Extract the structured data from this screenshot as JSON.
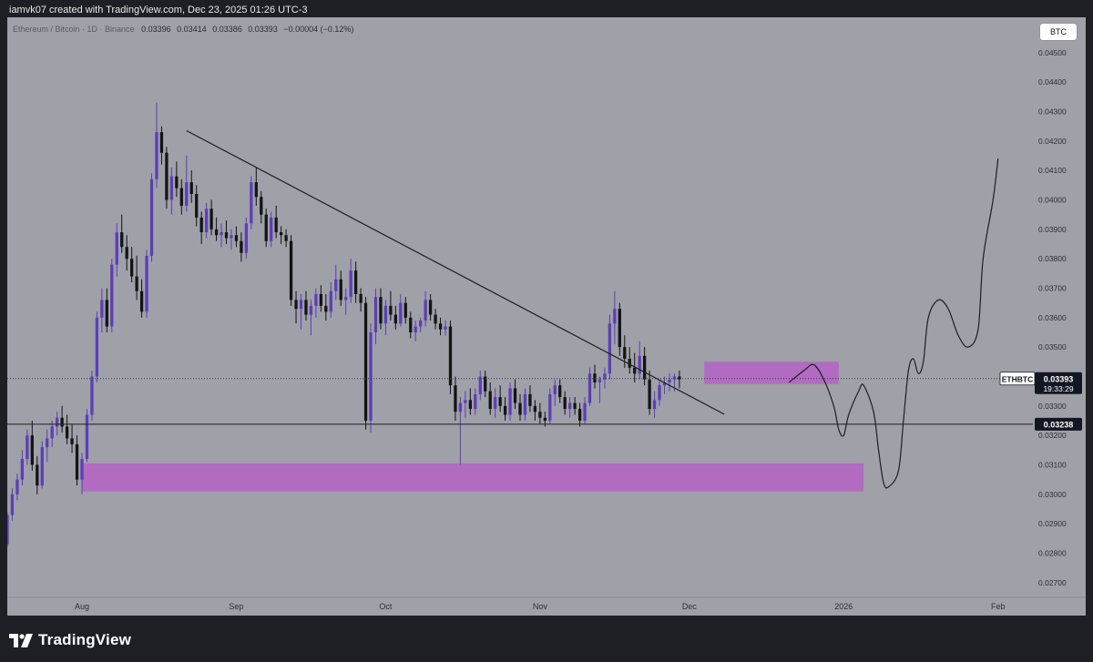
{
  "header": {
    "credit": "iamvk07 created with TradingView.com, Dec 23, 2025 01:26 UTC-3"
  },
  "legend": {
    "symbol": "Ethereum / Bitcoin · 1D · Binance",
    "open": "0.03396",
    "high": "0.03414",
    "low": "0.03386",
    "close": "0.03393",
    "change": "−0.00004 (−0.12%)"
  },
  "currency_button": "BTC",
  "footer": {
    "brand": "TradingView"
  },
  "colors": {
    "background": "#9fa0a8",
    "frame": "#1e1f24",
    "bull": "#5b3fb8",
    "bear": "#141414",
    "zone": "#b65cc8",
    "line": "#1f1f22"
  },
  "chart_data": {
    "type": "candlestick",
    "symbol": "ETHBTC",
    "ylim": [
      0.0265,
      0.0462
    ],
    "y_ticks": [
      "0.02700",
      "0.02800",
      "0.02900",
      "0.03000",
      "0.03100",
      "0.03200",
      "0.03300",
      "0.03400",
      "0.03500",
      "0.03600",
      "0.03700",
      "0.03800",
      "0.03900",
      "0.04000",
      "0.04100",
      "0.04200",
      "0.04300",
      "0.04400",
      "0.04500"
    ],
    "x_ticks": [
      {
        "label": "Aug",
        "date": "2025-08-01"
      },
      {
        "label": "Sep",
        "date": "2025-09-01"
      },
      {
        "label": "Oct",
        "date": "2025-10-01"
      },
      {
        "label": "Nov",
        "date": "2025-11-01"
      },
      {
        "label": "Dec",
        "date": "2025-12-01"
      },
      {
        "label": "2026",
        "date": "2026-01-01"
      },
      {
        "label": "Feb",
        "date": "2026-02-01"
      }
    ],
    "x_range": [
      "2025-07-17",
      "2026-02-08"
    ],
    "candles_start": "2025-07-17",
    "candles": [
      [
        0.0283,
        0.0294,
        0.0282,
        0.0293
      ],
      [
        0.0293,
        0.0302,
        0.0291,
        0.03
      ],
      [
        0.03,
        0.0307,
        0.0298,
        0.0305
      ],
      [
        0.0305,
        0.0315,
        0.0303,
        0.0312
      ],
      [
        0.0312,
        0.0322,
        0.031,
        0.032
      ],
      [
        0.032,
        0.0325,
        0.0308,
        0.031
      ],
      [
        0.031,
        0.0313,
        0.03,
        0.0303
      ],
      [
        0.0303,
        0.0318,
        0.0302,
        0.0316
      ],
      [
        0.0316,
        0.0322,
        0.0311,
        0.0319
      ],
      [
        0.0319,
        0.0325,
        0.0316,
        0.0323
      ],
      [
        0.0323,
        0.0328,
        0.032,
        0.0326
      ],
      [
        0.0326,
        0.033,
        0.0321,
        0.0323
      ],
      [
        0.0323,
        0.0327,
        0.0317,
        0.0319
      ],
      [
        0.0319,
        0.0324,
        0.0314,
        0.0317
      ],
      [
        0.0317,
        0.032,
        0.0303,
        0.0305
      ],
      [
        0.0305,
        0.0314,
        0.03,
        0.0312
      ],
      [
        0.0312,
        0.0329,
        0.0311,
        0.0327
      ],
      [
        0.0327,
        0.0342,
        0.0325,
        0.034
      ],
      [
        0.034,
        0.0362,
        0.0338,
        0.036
      ],
      [
        0.036,
        0.037,
        0.0355,
        0.0366
      ],
      [
        0.0366,
        0.037,
        0.0355,
        0.0357
      ],
      [
        0.0357,
        0.038,
        0.0355,
        0.0378
      ],
      [
        0.0378,
        0.0392,
        0.0374,
        0.0389
      ],
      [
        0.0389,
        0.0395,
        0.0382,
        0.0384
      ],
      [
        0.0384,
        0.0388,
        0.0376,
        0.038
      ],
      [
        0.038,
        0.0384,
        0.0372,
        0.0374
      ],
      [
        0.0374,
        0.0381,
        0.0366,
        0.0369
      ],
      [
        0.0369,
        0.0373,
        0.036,
        0.0362
      ],
      [
        0.0362,
        0.0383,
        0.036,
        0.0381
      ],
      [
        0.0381,
        0.0409,
        0.0379,
        0.0407
      ],
      [
        0.0407,
        0.0433,
        0.0404,
        0.0423
      ],
      [
        0.0423,
        0.0425,
        0.0412,
        0.0416
      ],
      [
        0.0416,
        0.0418,
        0.0397,
        0.04
      ],
      [
        0.04,
        0.0411,
        0.0395,
        0.0408
      ],
      [
        0.0408,
        0.0413,
        0.0401,
        0.0404
      ],
      [
        0.0404,
        0.0407,
        0.0395,
        0.0398
      ],
      [
        0.0398,
        0.0415,
        0.0396,
        0.0406
      ],
      [
        0.0406,
        0.041,
        0.0399,
        0.0402
      ],
      [
        0.0402,
        0.0405,
        0.0391,
        0.0394
      ],
      [
        0.0394,
        0.0396,
        0.0385,
        0.0389
      ],
      [
        0.0389,
        0.0399,
        0.0387,
        0.0397
      ],
      [
        0.0397,
        0.04,
        0.0388,
        0.039
      ],
      [
        0.039,
        0.0394,
        0.0386,
        0.0388
      ],
      [
        0.0388,
        0.0392,
        0.0384,
        0.0389
      ],
      [
        0.0389,
        0.0393,
        0.0385,
        0.0387
      ],
      [
        0.0387,
        0.039,
        0.0383,
        0.0388
      ],
      [
        0.0388,
        0.0391,
        0.0384,
        0.0386
      ],
      [
        0.0386,
        0.0389,
        0.0379,
        0.0382
      ],
      [
        0.0382,
        0.0394,
        0.038,
        0.0392
      ],
      [
        0.0392,
        0.0408,
        0.039,
        0.0406
      ],
      [
        0.0406,
        0.0411,
        0.0398,
        0.0401
      ],
      [
        0.0401,
        0.0403,
        0.0392,
        0.0395
      ],
      [
        0.0395,
        0.0397,
        0.0384,
        0.0386
      ],
      [
        0.0386,
        0.0396,
        0.0384,
        0.0394
      ],
      [
        0.0394,
        0.0398,
        0.0387,
        0.0389
      ],
      [
        0.0389,
        0.0391,
        0.0385,
        0.0388
      ],
      [
        0.0388,
        0.039,
        0.0384,
        0.0386
      ],
      [
        0.0386,
        0.0388,
        0.0364,
        0.0366
      ],
      [
        0.0366,
        0.0369,
        0.0358,
        0.0363
      ],
      [
        0.0363,
        0.0368,
        0.0356,
        0.0366
      ],
      [
        0.0366,
        0.0369,
        0.0359,
        0.0361
      ],
      [
        0.0361,
        0.0366,
        0.0354,
        0.0364
      ],
      [
        0.0364,
        0.037,
        0.036,
        0.0368
      ],
      [
        0.0368,
        0.0371,
        0.0362,
        0.0364
      ],
      [
        0.0364,
        0.0368,
        0.0359,
        0.0362
      ],
      [
        0.0362,
        0.0372,
        0.036,
        0.0369
      ],
      [
        0.0369,
        0.0378,
        0.0366,
        0.0373
      ],
      [
        0.0373,
        0.0376,
        0.0364,
        0.0366
      ],
      [
        0.0366,
        0.037,
        0.0361,
        0.0367
      ],
      [
        0.0367,
        0.038,
        0.0365,
        0.0376
      ],
      [
        0.0376,
        0.0379,
        0.0365,
        0.0368
      ],
      [
        0.0368,
        0.037,
        0.0362,
        0.0365
      ],
      [
        0.0365,
        0.0367,
        0.0322,
        0.0325
      ],
      [
        0.0325,
        0.0358,
        0.0321,
        0.0355
      ],
      [
        0.0355,
        0.037,
        0.0351,
        0.0367
      ],
      [
        0.0367,
        0.037,
        0.0356,
        0.0358
      ],
      [
        0.0358,
        0.0366,
        0.0354,
        0.0364
      ],
      [
        0.0364,
        0.0369,
        0.0359,
        0.0361
      ],
      [
        0.0361,
        0.0364,
        0.0356,
        0.0358
      ],
      [
        0.0358,
        0.0368,
        0.0357,
        0.0365
      ],
      [
        0.0365,
        0.0367,
        0.0358,
        0.036
      ],
      [
        0.036,
        0.0362,
        0.0353,
        0.0355
      ],
      [
        0.0355,
        0.0359,
        0.0352,
        0.0357
      ],
      [
        0.0357,
        0.036,
        0.0355,
        0.0359
      ],
      [
        0.0359,
        0.0369,
        0.0357,
        0.0366
      ],
      [
        0.0366,
        0.0368,
        0.0359,
        0.0361
      ],
      [
        0.0361,
        0.0363,
        0.0356,
        0.0358
      ],
      [
        0.0358,
        0.036,
        0.0354,
        0.0356
      ],
      [
        0.0356,
        0.0359,
        0.0354,
        0.0357
      ],
      [
        0.0357,
        0.0359,
        0.0334,
        0.0337
      ],
      [
        0.0337,
        0.034,
        0.0325,
        0.0328
      ],
      [
        0.0328,
        0.0333,
        0.031,
        0.0331
      ],
      [
        0.0331,
        0.0335,
        0.0326,
        0.0332
      ],
      [
        0.0332,
        0.0336,
        0.0327,
        0.0329
      ],
      [
        0.0329,
        0.0336,
        0.0327,
        0.0334
      ],
      [
        0.0334,
        0.0342,
        0.0332,
        0.034
      ],
      [
        0.034,
        0.0342,
        0.0333,
        0.0335
      ],
      [
        0.0335,
        0.0338,
        0.0327,
        0.0329
      ],
      [
        0.0329,
        0.0336,
        0.0326,
        0.0333
      ],
      [
        0.0333,
        0.0337,
        0.0328,
        0.033
      ],
      [
        0.033,
        0.0333,
        0.0325,
        0.0327
      ],
      [
        0.0327,
        0.0338,
        0.0325,
        0.0336
      ],
      [
        0.0336,
        0.0339,
        0.0329,
        0.0331
      ],
      [
        0.0331,
        0.0334,
        0.0325,
        0.0327
      ],
      [
        0.0327,
        0.0336,
        0.0325,
        0.0334
      ],
      [
        0.0334,
        0.0337,
        0.0328,
        0.033
      ],
      [
        0.033,
        0.0332,
        0.0325,
        0.0328
      ],
      [
        0.0328,
        0.0331,
        0.0324,
        0.0326
      ],
      [
        0.0326,
        0.0328,
        0.0323,
        0.0325
      ],
      [
        0.0325,
        0.0336,
        0.0324,
        0.0334
      ],
      [
        0.0334,
        0.0339,
        0.033,
        0.0337
      ],
      [
        0.0337,
        0.0339,
        0.0331,
        0.0333
      ],
      [
        0.0333,
        0.0335,
        0.0327,
        0.0329
      ],
      [
        0.0329,
        0.0333,
        0.0326,
        0.0331
      ],
      [
        0.0331,
        0.0333,
        0.0327,
        0.0329
      ],
      [
        0.0329,
        0.0331,
        0.0323,
        0.0325
      ],
      [
        0.0325,
        0.0333,
        0.0324,
        0.0331
      ],
      [
        0.0331,
        0.0343,
        0.033,
        0.0341
      ],
      [
        0.0341,
        0.0344,
        0.0336,
        0.0338
      ],
      [
        0.0338,
        0.034,
        0.0331,
        0.0339
      ],
      [
        0.0339,
        0.0343,
        0.0336,
        0.0341
      ],
      [
        0.0341,
        0.0361,
        0.0339,
        0.0358
      ],
      [
        0.0358,
        0.0369,
        0.0351,
        0.0363
      ],
      [
        0.0363,
        0.0365,
        0.0347,
        0.035
      ],
      [
        0.035,
        0.0354,
        0.0343,
        0.0346
      ],
      [
        0.0346,
        0.035,
        0.0341,
        0.0343
      ],
      [
        0.0343,
        0.0348,
        0.0338,
        0.0341
      ],
      [
        0.0341,
        0.0352,
        0.0339,
        0.0347
      ],
      [
        0.0347,
        0.035,
        0.0337,
        0.0339
      ],
      [
        0.0339,
        0.0342,
        0.0327,
        0.0329
      ],
      [
        0.0329,
        0.0335,
        0.0326,
        0.0332
      ],
      [
        0.0332,
        0.0339,
        0.033,
        0.0337
      ],
      [
        0.0337,
        0.034,
        0.0334,
        0.0338
      ],
      [
        0.0338,
        0.0341,
        0.0335,
        0.0339
      ],
      [
        0.0339,
        0.0341,
        0.0335,
        0.034
      ],
      [
        0.034,
        0.0342,
        0.0336,
        0.0339
      ]
    ],
    "current_price": {
      "label": "ETHBTC",
      "value": "0.03393",
      "countdown": "19:33:29"
    },
    "support_line": {
      "value": "0.03238"
    },
    "trendline": [
      {
        "date": "2025-08-22",
        "price": 0.04235
      },
      {
        "date": "2025-12-08",
        "price": 0.03272
      }
    ],
    "zones": [
      {
        "name": "support",
        "from": "2025-08-01",
        "to": "2026-01-05",
        "low": 0.0301,
        "high": 0.03105
      },
      {
        "name": "resistance",
        "from": "2025-12-04",
        "to": "2025-12-31",
        "low": 0.03375,
        "high": 0.0345
      }
    ],
    "projection": [
      {
        "date": "2025-12-21",
        "price": 0.0338
      },
      {
        "date": "2025-12-24",
        "price": 0.0342
      },
      {
        "date": "2025-12-26",
        "price": 0.0344
      },
      {
        "date": "2025-12-28",
        "price": 0.0339
      },
      {
        "date": "2025-12-30",
        "price": 0.033
      },
      {
        "date": "2025-12-31",
        "price": 0.0322
      },
      {
        "date": "2026-01-01",
        "price": 0.032
      },
      {
        "date": "2026-01-02",
        "price": 0.0327
      },
      {
        "date": "2026-01-04",
        "price": 0.0335
      },
      {
        "date": "2026-01-05",
        "price": 0.0337
      },
      {
        "date": "2026-01-07",
        "price": 0.0328
      },
      {
        "date": "2026-01-08",
        "price": 0.0315
      },
      {
        "date": "2026-01-09",
        "price": 0.0304
      },
      {
        "date": "2026-01-10",
        "price": 0.03025
      },
      {
        "date": "2026-01-12",
        "price": 0.0308
      },
      {
        "date": "2026-01-13",
        "price": 0.0325
      },
      {
        "date": "2026-01-14",
        "price": 0.0342
      },
      {
        "date": "2026-01-15",
        "price": 0.0346
      },
      {
        "date": "2026-01-16",
        "price": 0.0341
      },
      {
        "date": "2026-01-17",
        "price": 0.0345
      },
      {
        "date": "2026-01-18",
        "price": 0.036
      },
      {
        "date": "2026-01-20",
        "price": 0.0366
      },
      {
        "date": "2026-01-22",
        "price": 0.0363
      },
      {
        "date": "2026-01-24",
        "price": 0.0354
      },
      {
        "date": "2026-01-26",
        "price": 0.035
      },
      {
        "date": "2026-01-28",
        "price": 0.0356
      },
      {
        "date": "2026-01-29",
        "price": 0.038
      },
      {
        "date": "2026-01-31",
        "price": 0.04
      },
      {
        "date": "2026-02-01",
        "price": 0.0414
      }
    ]
  }
}
